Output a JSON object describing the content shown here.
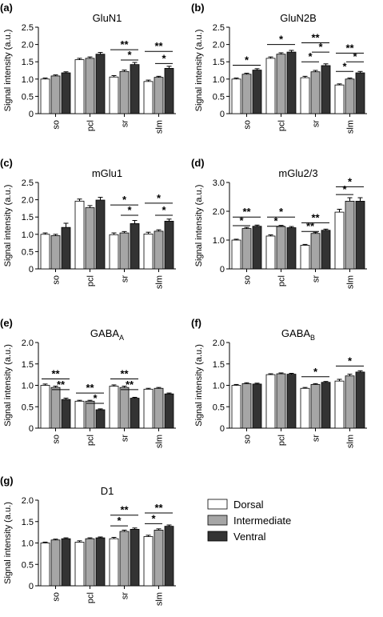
{
  "legend": {
    "placement": "bottom-right",
    "entries": [
      {
        "label": "Dorsal",
        "color": "#ffffff"
      },
      {
        "label": "Intermediate",
        "color": "#a6a6a6"
      },
      {
        "label": "Ventral",
        "color": "#333333"
      }
    ]
  },
  "chart_data": [
    {
      "panel": "(a)",
      "title": "GluN1",
      "type": "bar",
      "ylabel": "Signal intensity (a.u.)",
      "categories": [
        "so",
        "pcl",
        "sr",
        "slm"
      ],
      "ylim": [
        0,
        2.5
      ],
      "yticks": [
        "0",
        "0.5",
        "1.0",
        "1.5",
        "2.0",
        "2.5"
      ],
      "series": [
        {
          "name": "Dorsal",
          "values": [
            1.0,
            1.56,
            1.06,
            0.93
          ],
          "errors": [
            0.03,
            0.04,
            0.04,
            0.04
          ]
        },
        {
          "name": "Intermediate",
          "values": [
            1.09,
            1.6,
            1.22,
            1.05
          ],
          "errors": [
            0.03,
            0.04,
            0.04,
            0.03
          ]
        },
        {
          "name": "Ventral",
          "values": [
            1.18,
            1.72,
            1.42,
            1.31
          ],
          "errors": [
            0.03,
            0.05,
            0.06,
            0.06
          ]
        }
      ],
      "significance": [
        {
          "text": "**",
          "category": "sr",
          "from": "Dorsal",
          "to": "Ventral",
          "y": 1.85
        },
        {
          "text": "*",
          "category": "sr",
          "from": "Intermediate",
          "to": "Ventral",
          "y": 1.55
        },
        {
          "text": "**",
          "category": "slm",
          "from": "Dorsal",
          "to": "Ventral",
          "y": 1.8
        },
        {
          "text": "*",
          "category": "slm",
          "from": "Intermediate",
          "to": "Ventral",
          "y": 1.45
        }
      ]
    },
    {
      "panel": "(b)",
      "title": "GluN2B",
      "type": "bar",
      "ylabel": "Signal intensity (a.u.)",
      "categories": [
        "so",
        "pcl",
        "sr",
        "slm"
      ],
      "ylim": [
        0,
        2.5
      ],
      "yticks": [
        "0",
        "0.5",
        "1.0",
        "1.5",
        "2.0",
        "2.5"
      ],
      "series": [
        {
          "name": "Dorsal",
          "values": [
            1.0,
            1.6,
            1.04,
            0.83
          ],
          "errors": [
            0.03,
            0.04,
            0.04,
            0.03
          ]
        },
        {
          "name": "Intermediate",
          "values": [
            1.14,
            1.72,
            1.21,
            1.0
          ],
          "errors": [
            0.03,
            0.04,
            0.04,
            0.03
          ]
        },
        {
          "name": "Ventral",
          "values": [
            1.26,
            1.78,
            1.39,
            1.18
          ],
          "errors": [
            0.04,
            0.05,
            0.05,
            0.04
          ]
        }
      ],
      "significance": [
        {
          "text": "*",
          "category": "so",
          "from": "Dorsal",
          "to": "Ventral",
          "y": 1.4
        },
        {
          "text": "*",
          "category": "pcl",
          "from": "Dorsal",
          "to": "Ventral",
          "y": 2.0
        },
        {
          "text": "**",
          "category": "sr",
          "from": "Dorsal",
          "to": "Ventral",
          "y": 2.05
        },
        {
          "text": "*",
          "category": "sr",
          "from": "Intermediate",
          "to": "Ventral",
          "y": 1.78
        },
        {
          "text": "*",
          "category": "sr",
          "from": "Dorsal",
          "to": "Intermediate",
          "y": 1.5
        },
        {
          "text": "**",
          "category": "slm",
          "from": "Dorsal",
          "to": "Ventral",
          "y": 1.75
        },
        {
          "text": "*",
          "category": "slm",
          "from": "Intermediate",
          "to": "Ventral",
          "y": 1.5
        },
        {
          "text": "*",
          "category": "slm",
          "from": "Dorsal",
          "to": "Intermediate",
          "y": 1.22
        }
      ]
    },
    {
      "panel": "(c)",
      "title": "mGlu1",
      "type": "bar",
      "ylabel": "Signal intensity (a.u.)",
      "categories": [
        "so",
        "pcl",
        "sr",
        "slm"
      ],
      "ylim": [
        0,
        2.5
      ],
      "yticks": [
        "0",
        "0.5",
        "1.0",
        "1.5",
        "2.0",
        "2.5"
      ],
      "series": [
        {
          "name": "Dorsal",
          "values": [
            1.0,
            1.96,
            0.99,
            1.01
          ],
          "errors": [
            0.04,
            0.06,
            0.05,
            0.05
          ]
        },
        {
          "name": "Intermediate",
          "values": [
            0.96,
            1.77,
            1.04,
            1.09
          ],
          "errors": [
            0.04,
            0.06,
            0.04,
            0.04
          ]
        },
        {
          "name": "Ventral",
          "values": [
            1.2,
            1.99,
            1.31,
            1.38
          ],
          "errors": [
            0.12,
            0.08,
            0.09,
            0.06
          ]
        }
      ],
      "significance": [
        {
          "text": "*",
          "category": "sr",
          "from": "Dorsal",
          "to": "Ventral",
          "y": 1.85
        },
        {
          "text": "*",
          "category": "sr",
          "from": "Intermediate",
          "to": "Ventral",
          "y": 1.55
        },
        {
          "text": "*",
          "category": "slm",
          "from": "Dorsal",
          "to": "Ventral",
          "y": 1.9
        },
        {
          "text": "*",
          "category": "slm",
          "from": "Intermediate",
          "to": "Ventral",
          "y": 1.55
        }
      ]
    },
    {
      "panel": "(d)",
      "title": "mGlu2/3",
      "type": "bar",
      "ylabel": "Signal intensity (a.u.)",
      "categories": [
        "so",
        "pcl",
        "sr",
        "slm"
      ],
      "ylim": [
        0,
        3.0
      ],
      "yticks": [
        "0",
        "1.0",
        "2.0",
        "3.0"
      ],
      "series": [
        {
          "name": "Dorsal",
          "values": [
            1.0,
            1.14,
            0.82,
            1.97
          ],
          "errors": [
            0.03,
            0.04,
            0.03,
            0.1
          ]
        },
        {
          "name": "Intermediate",
          "values": [
            1.4,
            1.47,
            1.23,
            2.35
          ],
          "errors": [
            0.04,
            0.04,
            0.04,
            0.12
          ]
        },
        {
          "name": "Ventral",
          "values": [
            1.48,
            1.43,
            1.34,
            2.35
          ],
          "errors": [
            0.04,
            0.04,
            0.04,
            0.12
          ]
        }
      ],
      "significance": [
        {
          "text": "**",
          "category": "so",
          "from": "Dorsal",
          "to": "Ventral",
          "y": 1.8
        },
        {
          "text": "*",
          "category": "so",
          "from": "Dorsal",
          "to": "Intermediate",
          "y": 1.5
        },
        {
          "text": "*",
          "category": "pcl",
          "from": "Dorsal",
          "to": "Ventral",
          "y": 1.8
        },
        {
          "text": "*",
          "category": "pcl",
          "from": "Dorsal",
          "to": "Intermediate",
          "y": 1.48
        },
        {
          "text": "**",
          "category": "sr",
          "from": "Dorsal",
          "to": "Ventral",
          "y": 1.6
        },
        {
          "text": "**",
          "category": "sr",
          "from": "Dorsal",
          "to": "Intermediate",
          "y": 1.3
        },
        {
          "text": "*",
          "category": "slm",
          "from": "Dorsal",
          "to": "Ventral",
          "y": 2.85
        },
        {
          "text": "*",
          "category": "slm",
          "from": "Dorsal",
          "to": "Intermediate",
          "y": 2.58
        }
      ]
    },
    {
      "panel": "(e)",
      "title": "GABA",
      "title_sub": "A",
      "type": "bar",
      "ylabel": "Signal intensity (a.u.)",
      "categories": [
        "so",
        "pcl",
        "sr",
        "slm"
      ],
      "ylim": [
        0,
        2.0
      ],
      "yticks": [
        "0",
        "0.5",
        "1.0",
        "1.5",
        "2.0"
      ],
      "series": [
        {
          "name": "Dorsal",
          "values": [
            1.0,
            0.63,
            0.98,
            0.91
          ],
          "errors": [
            0.03,
            0.02,
            0.03,
            0.02
          ]
        },
        {
          "name": "Intermediate",
          "values": [
            0.95,
            0.63,
            0.95,
            0.93
          ],
          "errors": [
            0.03,
            0.02,
            0.03,
            0.02
          ]
        },
        {
          "name": "Ventral",
          "values": [
            0.67,
            0.43,
            0.7,
            0.8
          ],
          "errors": [
            0.03,
            0.02,
            0.02,
            0.02
          ]
        }
      ],
      "significance": [
        {
          "text": "**",
          "category": "so",
          "from": "Dorsal",
          "to": "Ventral",
          "y": 1.15
        },
        {
          "text": "**",
          "category": "so",
          "from": "Intermediate",
          "to": "Ventral",
          "y": 0.9
        },
        {
          "text": "**",
          "category": "pcl",
          "from": "Dorsal",
          "to": "Ventral",
          "y": 0.82
        },
        {
          "text": "*",
          "category": "pcl",
          "from": "Intermediate",
          "to": "Ventral",
          "y": 0.58
        },
        {
          "text": "**",
          "category": "sr",
          "from": "Dorsal",
          "to": "Ventral",
          "y": 1.15
        },
        {
          "text": "**",
          "category": "sr",
          "from": "Intermediate",
          "to": "Ventral",
          "y": 0.9
        }
      ]
    },
    {
      "panel": "(f)",
      "title": "GABA",
      "title_sub": "B",
      "type": "bar",
      "ylabel": "Signal intensity (a.u.)",
      "categories": [
        "so",
        "pcl",
        "sr",
        "slm"
      ],
      "ylim": [
        0,
        2.0
      ],
      "yticks": [
        "0",
        "0.5",
        "1.0",
        "1.5",
        "2.0"
      ],
      "series": [
        {
          "name": "Dorsal",
          "values": [
            1.0,
            1.25,
            0.93,
            1.1
          ],
          "errors": [
            0.02,
            0.02,
            0.02,
            0.04
          ]
        },
        {
          "name": "Intermediate",
          "values": [
            1.04,
            1.27,
            1.02,
            1.22
          ],
          "errors": [
            0.02,
            0.02,
            0.02,
            0.04
          ]
        },
        {
          "name": "Ventral",
          "values": [
            1.03,
            1.26,
            1.07,
            1.31
          ],
          "errors": [
            0.02,
            0.02,
            0.02,
            0.03
          ]
        }
      ],
      "significance": [
        {
          "text": "*",
          "category": "sr",
          "from": "Dorsal",
          "to": "Ventral",
          "y": 1.2
        },
        {
          "text": "*",
          "category": "slm",
          "from": "Dorsal",
          "to": "Ventral",
          "y": 1.45
        }
      ]
    },
    {
      "panel": "(g)",
      "title": "D1",
      "type": "bar",
      "ylabel": "Signal intensity (a.u.)",
      "categories": [
        "so",
        "pcl",
        "sr",
        "slm"
      ],
      "ylim": [
        0,
        2.0
      ],
      "yticks": [
        "0",
        "0.5",
        "1.0",
        "1.5",
        "2.0"
      ],
      "series": [
        {
          "name": "Dorsal",
          "values": [
            1.0,
            1.02,
            1.1,
            1.15
          ],
          "errors": [
            0.02,
            0.03,
            0.03,
            0.03
          ]
        },
        {
          "name": "Intermediate",
          "values": [
            1.07,
            1.1,
            1.27,
            1.3
          ],
          "errors": [
            0.02,
            0.02,
            0.03,
            0.03
          ]
        },
        {
          "name": "Ventral",
          "values": [
            1.1,
            1.12,
            1.32,
            1.39
          ],
          "errors": [
            0.02,
            0.02,
            0.03,
            0.03
          ]
        }
      ],
      "significance": [
        {
          "text": "**",
          "category": "sr",
          "from": "Dorsal",
          "to": "Ventral",
          "y": 1.65
        },
        {
          "text": "*",
          "category": "sr",
          "from": "Dorsal",
          "to": "Intermediate",
          "y": 1.4
        },
        {
          "text": "**",
          "category": "slm",
          "from": "Dorsal",
          "to": "Ventral",
          "y": 1.7
        },
        {
          "text": "*",
          "category": "slm",
          "from": "Dorsal",
          "to": "Intermediate",
          "y": 1.45
        }
      ]
    }
  ]
}
